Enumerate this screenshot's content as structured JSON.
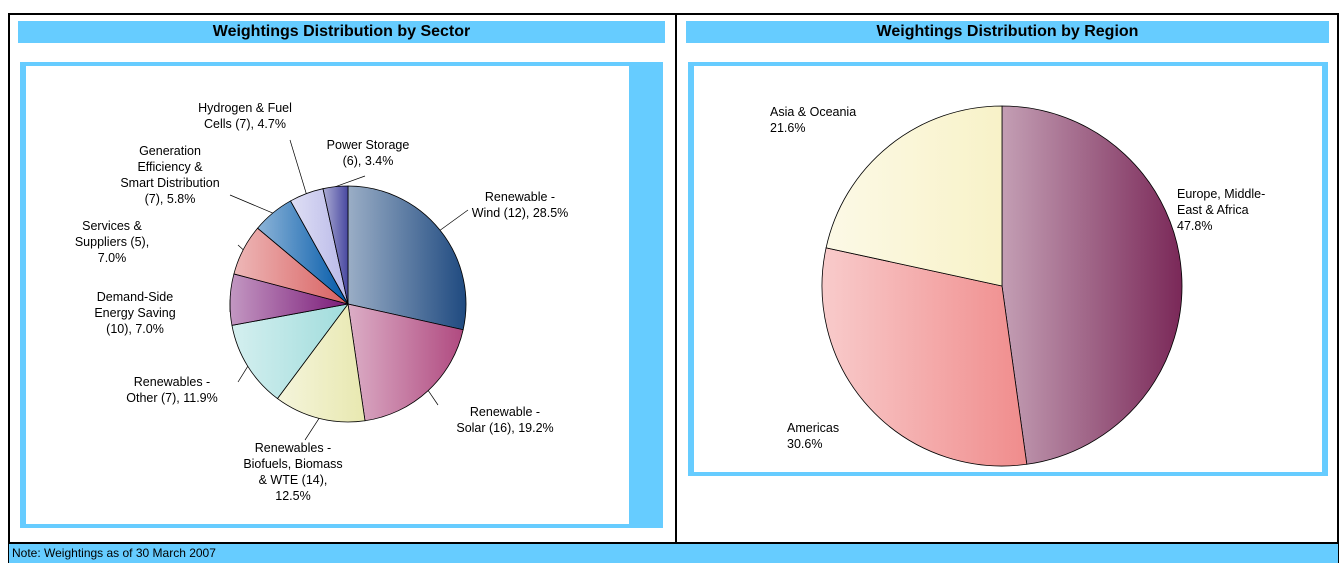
{
  "chart_data": [
    {
      "type": "pie",
      "title": "Weightings Distribution by Sector",
      "categories": [
        "Renewable -\nWind (12), 28.5%",
        "Renewable -\nSolar (16), 19.2%",
        "Renewables -\nBiofuels, Biomass\n& WTE (14),\n12.5%",
        "Renewables -\nOther (7), 11.9%",
        "Demand-Side\nEnergy Saving\n(10), 7.0%",
        "Services &\nSuppliers (5),\n7.0%",
        "Generation\nEfficiency &\nSmart Distribution\n(7), 5.8%",
        "Hydrogen & Fuel\nCells (7), 4.7%",
        "Power Storage\n(6), 3.4%"
      ],
      "values": [
        28.5,
        19.2,
        12.5,
        11.9,
        7.0,
        7.0,
        5.8,
        4.7,
        3.4
      ],
      "colors": [
        "#1f4a80",
        "#b04a80",
        "#e8e8b0",
        "#a0dcdc",
        "#7a1a78",
        "#d86060",
        "#0058a8",
        "#b8b8e8",
        "#4848a0"
      ]
    },
    {
      "type": "pie",
      "title": "Weightings Distribution by Region",
      "categories": [
        "Europe, Middle-\nEast & Africa\n47.8%",
        "Americas\n30.6%",
        "Asia & Oceania\n21.6%"
      ],
      "values": [
        47.8,
        30.6,
        21.6
      ],
      "colors": [
        "#7a2858",
        "#f08c8c",
        "#f8f2c8"
      ]
    }
  ],
  "note": "Note: Weightings as of 30 March 2007"
}
